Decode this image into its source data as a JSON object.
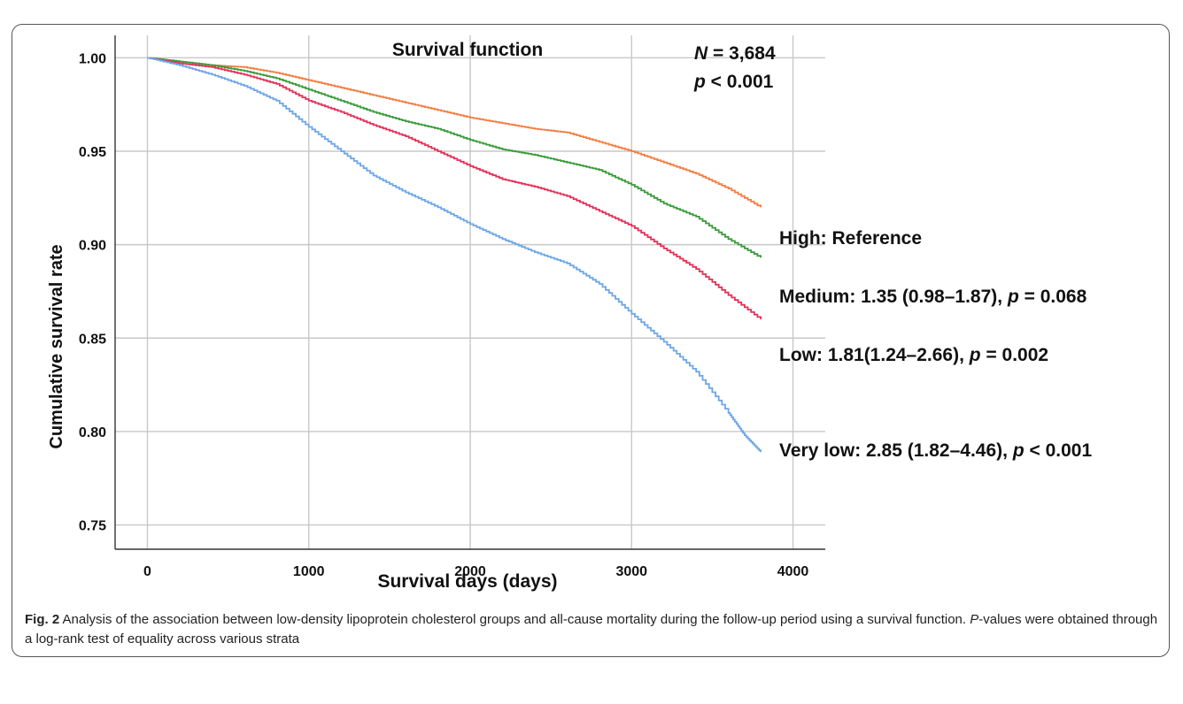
{
  "chart_data": {
    "type": "line",
    "title": "Survival function",
    "annotation": {
      "n_label": "N",
      "n_value": " = 3,684",
      "p_label": "p",
      "p_value": " < 0.001"
    },
    "xlabel": "Survival days (days)",
    "ylabel": "Cumulative survival rate",
    "xlim": [
      -200,
      4200
    ],
    "ylim": [
      0.737,
      1.012
    ],
    "xticks": [
      0,
      1000,
      2000,
      3000,
      4000
    ],
    "yticks": [
      0.75,
      0.8,
      0.85,
      0.9,
      0.95,
      1.0
    ],
    "ytick_labels": [
      "0.75",
      "0.80",
      "0.85",
      "0.90",
      "0.95",
      "1.00"
    ],
    "grid": true,
    "series": [
      {
        "key": "high",
        "color": "#f47d42",
        "label_main": "High: Reference",
        "label_p": "",
        "label_tail": "",
        "x": [
          0,
          200,
          400,
          600,
          800,
          1000,
          1200,
          1400,
          1600,
          1800,
          2000,
          2200,
          2400,
          2600,
          2800,
          3000,
          3200,
          3400,
          3600,
          3800
        ],
        "y": [
          1.0,
          0.998,
          0.996,
          0.995,
          0.992,
          0.988,
          0.984,
          0.98,
          0.976,
          0.972,
          0.968,
          0.965,
          0.962,
          0.96,
          0.955,
          0.95,
          0.944,
          0.938,
          0.93,
          0.92
        ]
      },
      {
        "key": "medium",
        "color": "#3b9a3b",
        "label_main": "Medium: 1.35 (0.98–1.87), ",
        "label_p": "p",
        "label_tail": " = 0.068",
        "x": [
          0,
          200,
          400,
          600,
          800,
          1000,
          1200,
          1400,
          1600,
          1800,
          2000,
          2200,
          2400,
          2600,
          2800,
          3000,
          3200,
          3400,
          3600,
          3800
        ],
        "y": [
          1.0,
          0.998,
          0.996,
          0.993,
          0.989,
          0.983,
          0.977,
          0.971,
          0.966,
          0.962,
          0.956,
          0.951,
          0.948,
          0.944,
          0.94,
          0.932,
          0.922,
          0.915,
          0.903,
          0.893
        ]
      },
      {
        "key": "low",
        "color": "#e33158",
        "label_main": "Low: 1.81(1.24–2.66), ",
        "label_p": "p",
        "label_tail": " = 0.002",
        "x": [
          0,
          200,
          400,
          600,
          800,
          1000,
          1200,
          1400,
          1600,
          1800,
          2000,
          2200,
          2400,
          2600,
          2800,
          3000,
          3200,
          3400,
          3600,
          3800
        ],
        "y": [
          1.0,
          0.997,
          0.995,
          0.991,
          0.986,
          0.977,
          0.971,
          0.964,
          0.958,
          0.95,
          0.942,
          0.935,
          0.931,
          0.926,
          0.918,
          0.91,
          0.898,
          0.887,
          0.873,
          0.86
        ]
      },
      {
        "key": "very_low",
        "color": "#6ea6e6",
        "label_main": "Very low: 2.85 (1.82–4.46), ",
        "label_p": "p",
        "label_tail": " < 0.001",
        "x": [
          0,
          200,
          400,
          600,
          800,
          1000,
          1200,
          1400,
          1600,
          1800,
          2000,
          2200,
          2400,
          2600,
          2800,
          3000,
          3200,
          3400,
          3600,
          3700,
          3800
        ],
        "y": [
          1.0,
          0.996,
          0.991,
          0.985,
          0.977,
          0.963,
          0.95,
          0.937,
          0.928,
          0.92,
          0.911,
          0.903,
          0.896,
          0.89,
          0.879,
          0.863,
          0.848,
          0.832,
          0.81,
          0.798,
          0.789
        ]
      }
    ]
  },
  "caption": {
    "fig_label": "Fig. 2",
    "text_1": " Analysis of the association between low-density lipoprotein cholesterol groups and all-cause mortality during the follow-up period using a survival function. ",
    "p_italic": "P",
    "text_2": "-values were obtained through a log-rank test of equality across various strata"
  }
}
